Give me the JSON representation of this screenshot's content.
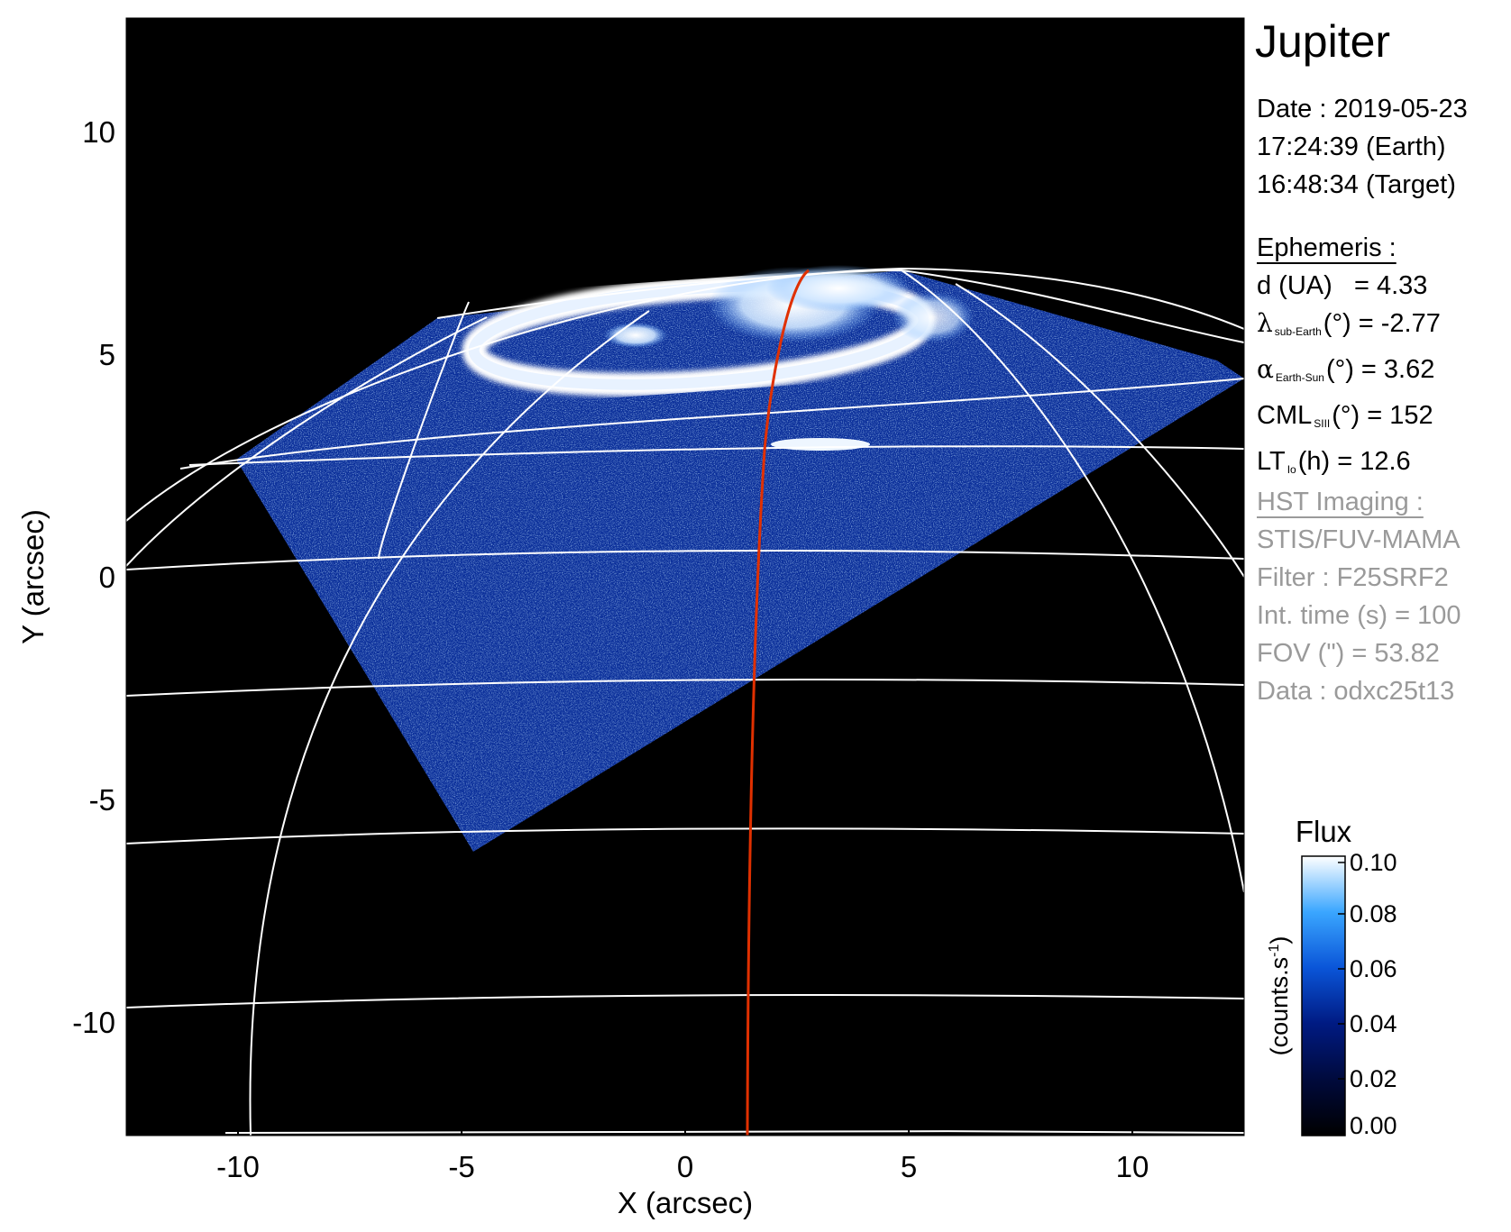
{
  "image": {
    "planet": "Jupiter",
    "x_axis_label": "X (arcsec)",
    "y_axis_label": "Y (arcsec)",
    "x_ticks": [
      "-10",
      "-5",
      "0",
      "5",
      "10"
    ],
    "y_ticks": [
      "10",
      "5",
      "0",
      "-5",
      "-10"
    ],
    "x_range": [
      -12.5,
      12.5
    ],
    "y_range": [
      -12.5,
      12.5
    ],
    "colors": {
      "background": "#000000",
      "grid": "#ffffff",
      "footprint": "#e03000",
      "colormap_low": "#000000",
      "colormap_mid": "#0a3cc8",
      "colormap_high": "#ffffff"
    }
  },
  "date": {
    "line1": "Date : 2019-05-23",
    "line2": "17:24:39 (Earth)",
    "line3": "16:48:34 (Target)"
  },
  "ephemeris": {
    "heading": "Ephemeris :",
    "d_label": "d (UA)",
    "d_value": "= 4.33",
    "lat_symbol": "λ",
    "lat_sub": "sub-Earth",
    "lat_rest": "(°) = -2.77",
    "phase_symbol": "α",
    "phase_sub": "Earth-Sun",
    "phase_rest": "(°) = 3.62",
    "cml_label": "CML",
    "cml_sub": "SIII",
    "cml_rest": "(°) = 152",
    "lt_label": "LT",
    "lt_sub": "Io",
    "lt_rest": "(h) = 12.6"
  },
  "hst": {
    "heading": "HST Imaging :",
    "instrument": "STIS/FUV-MAMA",
    "filter": "Filter : F25SRF2",
    "int_time": "Int. time (s) = 100",
    "fov": "FOV (\") = 53.82",
    "data": "Data : odxc25t13"
  },
  "colorbar": {
    "title": "Flux",
    "unit_label": "(counts.s",
    "unit_exp": "-1",
    "unit_close": ")",
    "ticks": [
      "0.10",
      "0.08",
      "0.06",
      "0.04",
      "0.02",
      "0.00"
    ],
    "range": [
      0.0,
      0.1
    ]
  }
}
